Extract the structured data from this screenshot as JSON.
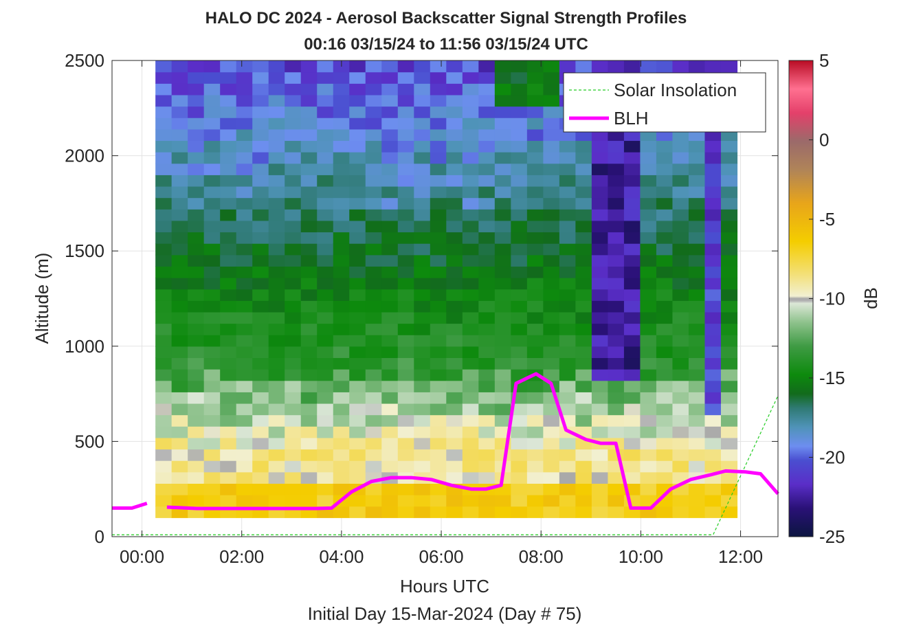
{
  "chart_data": {
    "type": "heatmap",
    "title": "HALO DC 2024 - Aerosol Backscatter Signal Strength Profiles",
    "subtitle": "00:16 03/15/24 to 11:56 03/15/24  UTC",
    "xlabel": "Hours UTC",
    "xlabel2": "Initial Day 15-Mar-2024 (Day # 75)",
    "ylabel": "Altitude (m)",
    "colorbar_label": "dB",
    "xlim_hours": [
      -0.6,
      12.75
    ],
    "ylim": [
      0,
      2500
    ],
    "x_ticks": [
      0,
      2,
      4,
      6,
      8,
      10,
      12
    ],
    "x_tick_labels": [
      "00:00",
      "02:00",
      "04:00",
      "06:00",
      "08:00",
      "10:00",
      "12:00"
    ],
    "y_ticks": [
      0,
      500,
      1000,
      1500,
      2000,
      2500
    ],
    "y_tick_labels": [
      "0",
      "500",
      "1000",
      "1500",
      "2000",
      "2500"
    ],
    "clim": [
      -25,
      5
    ],
    "colorbar_ticks": [
      5,
      0,
      -5,
      -10,
      -15,
      -20,
      -25
    ],
    "colorbar_tick_labels": [
      "5",
      "0",
      "-5",
      "-10",
      "-15",
      "-20",
      "-25"
    ],
    "grid": true,
    "legend_position": "top-right",
    "heatmap": {
      "x_start_hours": 0.27,
      "x_end_hours": 11.93,
      "y_bottom_m": 100,
      "y_top_m": 2500,
      "columns": 36,
      "rows": 40,
      "estimated_db_profile_note": ""
    },
    "series": [
      {
        "name": "Solar Insolation",
        "color": "#22cc22",
        "style": "dashed",
        "x": [
          -0.6,
          11.45,
          12.75
        ],
        "y": [
          10,
          10,
          740
        ]
      },
      {
        "name": "BLH",
        "color": "#ff00ff",
        "style": "solid",
        "segments": [
          {
            "x": [
              -0.6,
              -0.2,
              0.1
            ],
            "y": [
              150,
              150,
              175
            ]
          },
          {
            "x": [
              0.5,
              1.1,
              1.9,
              2.7,
              3.5,
              3.8,
              4.2,
              4.6,
              5.0,
              5.4,
              5.8,
              6.2,
              6.6,
              6.9,
              7.2,
              7.5,
              7.9,
              8.2,
              8.5,
              8.9,
              9.2,
              9.5,
              9.8,
              10.2,
              10.6,
              11.0,
              11.4,
              11.7,
              12.1,
              12.4,
              12.75
            ],
            "y": [
              155,
              148,
              148,
              148,
              148,
              150,
              235,
              290,
              310,
              310,
              300,
              270,
              250,
              250,
              270,
              805,
              855,
              805,
              560,
              510,
              490,
              490,
              150,
              150,
              250,
              300,
              325,
              345,
              340,
              330,
              225
            ]
          }
        ]
      }
    ]
  }
}
